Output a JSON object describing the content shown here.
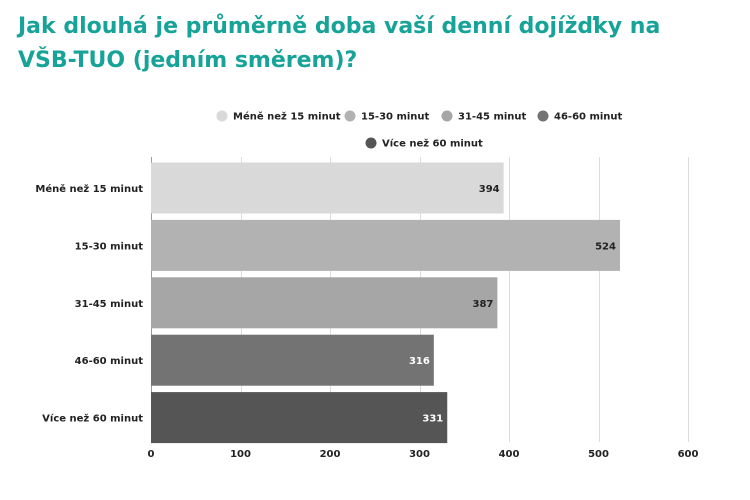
{
  "chart_data": {
    "type": "bar",
    "orientation": "horizontal",
    "title": "Jak dlouhá je průměrně doba vaší denní dojížďky na VŠB-TUO (jedním směrem)?",
    "categories": [
      "Méně než 15 minut",
      "15-30 minut",
      "31-45 minut",
      "46-60 minut",
      "Více než 60 minut"
    ],
    "values": [
      394,
      524,
      387,
      316,
      331
    ],
    "colors": [
      "#d9d9d9",
      "#b2b2b2",
      "#a6a6a6",
      "#737373",
      "#555555"
    ],
    "value_label_colors": [
      "#222222",
      "#222222",
      "#222222",
      "#ffffff",
      "#ffffff"
    ],
    "xlim": [
      0,
      600
    ],
    "xticks": [
      0,
      100,
      200,
      300,
      400,
      500,
      600
    ],
    "grid": true,
    "legend": {
      "placement": "top",
      "entries": [
        "Méně než 15 minut",
        "15-30 minut",
        "31-45 minut",
        "46-60 minut",
        "Více než 60 minut"
      ]
    }
  }
}
